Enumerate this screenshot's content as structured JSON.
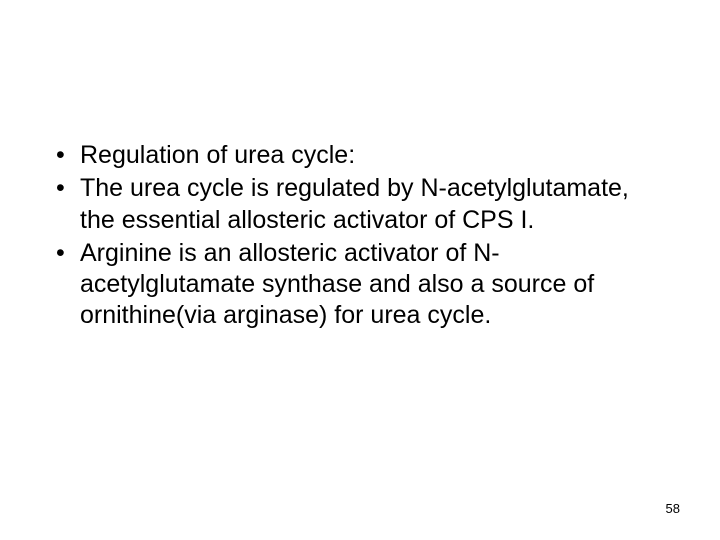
{
  "slide": {
    "bullets": [
      "Regulation of urea cycle:",
      "The urea cycle is regulated by N-acetylglutamate, the essential allosteric activator of CPS I.",
      "Arginine is an allosteric activator of N-acetylglutamate synthase and also a source of ornithine(via arginase) for urea cycle."
    ],
    "page_number": "58"
  },
  "style": {
    "background_color": "#ffffff",
    "text_color": "#000000",
    "bullet_fontsize": 25,
    "page_number_fontsize": 13,
    "font_family": "Arial"
  }
}
